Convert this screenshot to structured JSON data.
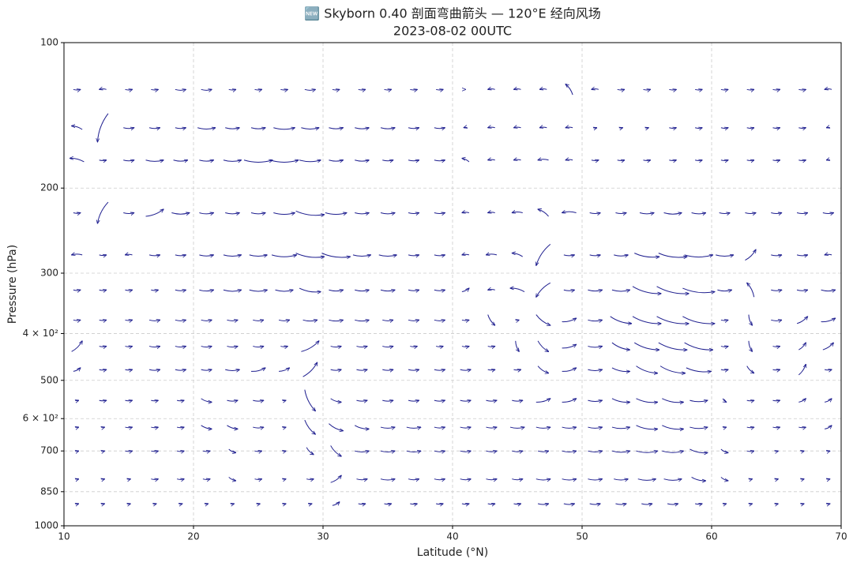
{
  "chart_data": {
    "type": "quiver",
    "title": "🆕 Skyborn 0.40 剖面弯曲箭头 — 120°E 经向风场",
    "subtitle": "2023-08-02 00UTC",
    "x_label": "Latitude (°N)",
    "y_label": "Pressure (hPa)",
    "xlim": [
      10,
      70
    ],
    "xticks": [
      10,
      20,
      30,
      40,
      50,
      60,
      70
    ],
    "ylim": [
      1000,
      100
    ],
    "y_scale": "log",
    "yticks": [
      100,
      200,
      300,
      {
        "value": 400,
        "label": "4 × 10²"
      },
      500,
      {
        "value": 600,
        "label": "6 × 10²"
      },
      700,
      850,
      1000
    ],
    "grid": true,
    "color": "#1f1f8f",
    "x": [
      11,
      13,
      15,
      17,
      19,
      21,
      23,
      25,
      27,
      29,
      31,
      33,
      35,
      37,
      39,
      41,
      43,
      45,
      47,
      49,
      51,
      53,
      55,
      57,
      59,
      61,
      63,
      65,
      67,
      69
    ],
    "levels": [
      125,
      150,
      175,
      225,
      275,
      325,
      375,
      425,
      475,
      550,
      625,
      700,
      800,
      900
    ],
    "u": [
      [
        2,
        -2,
        2,
        2,
        3,
        3,
        2,
        2,
        2,
        3,
        2,
        2,
        2,
        2,
        2,
        0,
        -2,
        -2,
        -2,
        -2,
        -2,
        2,
        2,
        2,
        2,
        2,
        2,
        2,
        2,
        -2
      ],
      [
        -3,
        -3,
        3,
        3,
        3,
        5,
        4,
        4,
        6,
        5,
        4,
        4,
        4,
        3,
        3,
        -1,
        -2,
        -2,
        -2,
        -2,
        1,
        1,
        1,
        2,
        2,
        2,
        2,
        2,
        2,
        -1
      ],
      [
        -4,
        2,
        3,
        5,
        4,
        4,
        5,
        8,
        8,
        6,
        4,
        4,
        3,
        3,
        3,
        -2,
        -2,
        -2,
        -3,
        -2,
        2,
        2,
        2,
        2,
        2,
        2,
        2,
        2,
        2,
        -1
      ],
      [
        2,
        -3,
        3,
        5,
        5,
        4,
        4,
        4,
        6,
        8,
        6,
        4,
        4,
        3,
        3,
        -2,
        -2,
        -3,
        -3,
        -4,
        3,
        3,
        4,
        5,
        4,
        3,
        3,
        3,
        3,
        3
      ],
      [
        -3,
        2,
        -2,
        3,
        3,
        4,
        5,
        5,
        7,
        8,
        8,
        5,
        5,
        3,
        3,
        -2,
        -3,
        -3,
        -4,
        3,
        3,
        4,
        7,
        8,
        8,
        5,
        3,
        3,
        3,
        -2
      ],
      [
        2,
        2,
        2,
        2,
        3,
        4,
        5,
        5,
        5,
        6,
        4,
        4,
        4,
        3,
        3,
        2,
        -2,
        -4,
        -4,
        3,
        4,
        5,
        8,
        9,
        9,
        4,
        -2,
        3,
        3,
        4
      ],
      [
        2,
        2,
        2,
        3,
        3,
        3,
        3,
        3,
        3,
        4,
        4,
        4,
        3,
        3,
        3,
        2,
        2,
        1,
        4,
        4,
        4,
        6,
        8,
        9,
        9,
        2,
        1,
        3,
        3,
        4
      ],
      [
        3,
        2,
        2,
        3,
        3,
        3,
        3,
        3,
        2,
        5,
        3,
        3,
        3,
        2,
        2,
        2,
        2,
        1,
        3,
        4,
        4,
        5,
        7,
        8,
        8,
        2,
        1,
        2,
        2,
        3
      ],
      [
        2,
        2,
        2,
        3,
        3,
        3,
        4,
        4,
        3,
        4,
        3,
        3,
        3,
        3,
        3,
        3,
        2,
        2,
        3,
        4,
        4,
        5,
        6,
        7,
        7,
        2,
        2,
        2,
        2,
        2
      ],
      [
        1,
        2,
        2,
        2,
        2,
        3,
        3,
        3,
        1,
        3,
        3,
        3,
        3,
        3,
        3,
        3,
        3,
        3,
        4,
        4,
        4,
        5,
        6,
        6,
        5,
        1,
        2,
        2,
        2,
        2
      ],
      [
        1,
        1,
        2,
        2,
        2,
        3,
        3,
        3,
        1,
        3,
        4,
        4,
        4,
        4,
        3,
        3,
        3,
        4,
        4,
        4,
        4,
        5,
        6,
        6,
        5,
        1,
        2,
        2,
        2,
        2
      ],
      [
        1,
        1,
        2,
        2,
        2,
        2,
        2,
        2,
        1,
        2,
        3,
        4,
        4,
        4,
        3,
        3,
        3,
        3,
        3,
        4,
        4,
        5,
        6,
        6,
        5,
        2,
        2,
        1,
        1,
        1
      ],
      [
        1,
        1,
        1,
        2,
        2,
        2,
        2,
        2,
        1,
        2,
        3,
        3,
        4,
        3,
        3,
        3,
        3,
        3,
        4,
        4,
        4,
        4,
        5,
        5,
        4,
        2,
        1,
        1,
        1,
        1
      ],
      [
        1,
        1,
        1,
        1,
        1,
        1,
        1,
        1,
        1,
        1,
        2,
        2,
        2,
        2,
        2,
        2,
        2,
        2,
        3,
        3,
        3,
        3,
        3,
        3,
        2,
        1,
        1,
        1,
        1,
        1
      ]
    ],
    "v": [
      [
        0,
        0,
        0,
        0,
        0,
        0,
        0,
        0,
        0,
        0,
        0,
        0,
        0,
        0,
        0,
        0,
        0,
        0,
        0,
        3,
        0,
        0,
        0,
        0,
        0,
        0,
        0,
        0,
        0,
        0
      ],
      [
        1,
        -8,
        0,
        0,
        0,
        0,
        0,
        0,
        0,
        0,
        0,
        0,
        0,
        0,
        0,
        0,
        0,
        0,
        0,
        0,
        0,
        0,
        0,
        0,
        0,
        0,
        0,
        0,
        0,
        0
      ],
      [
        1,
        0,
        0,
        0,
        0,
        0,
        0,
        0,
        0,
        0,
        0,
        0,
        0,
        0,
        0,
        1,
        0,
        0,
        0,
        0,
        0,
        0,
        0,
        0,
        0,
        0,
        0,
        0,
        0,
        0
      ],
      [
        0,
        -6,
        0,
        2,
        0,
        0,
        0,
        0,
        0,
        -1,
        0,
        0,
        0,
        0,
        0,
        0,
        0,
        0,
        2,
        0,
        0,
        0,
        0,
        0,
        0,
        0,
        0,
        0,
        0,
        0
      ],
      [
        0,
        0,
        0,
        0,
        0,
        0,
        0,
        0,
        0,
        -1,
        -1,
        0,
        0,
        0,
        0,
        0,
        0,
        1,
        -6,
        0,
        0,
        0,
        -1,
        -1,
        0,
        0,
        3,
        0,
        0,
        0
      ],
      [
        0,
        0,
        0,
        0,
        0,
        0,
        0,
        0,
        0,
        -1,
        0,
        0,
        0,
        0,
        0,
        1,
        0,
        1,
        -4,
        0,
        0,
        0,
        -2,
        -2,
        -1,
        0,
        4,
        0,
        0,
        0
      ],
      [
        0,
        0,
        0,
        0,
        0,
        0,
        0,
        0,
        0,
        0,
        0,
        0,
        0,
        0,
        0,
        0,
        -3,
        0,
        -3,
        1,
        0,
        -2,
        -2,
        -2,
        -2,
        0,
        -3,
        0,
        2,
        1
      ],
      [
        3,
        0,
        0,
        0,
        0,
        0,
        0,
        0,
        0,
        3,
        0,
        0,
        0,
        0,
        0,
        0,
        0,
        -3,
        -3,
        1,
        0,
        -2,
        -2,
        -2,
        -2,
        0,
        -3,
        0,
        2,
        2
      ],
      [
        1,
        0,
        0,
        0,
        0,
        0,
        0,
        1,
        1,
        4,
        0,
        0,
        0,
        0,
        0,
        0,
        0,
        0,
        -2,
        1,
        0,
        -1,
        -2,
        -2,
        -1,
        0,
        -2,
        0,
        3,
        0
      ],
      [
        0,
        0,
        0,
        0,
        0,
        -1,
        0,
        0,
        0,
        -6,
        -1,
        0,
        0,
        0,
        0,
        0,
        0,
        0,
        1,
        1,
        0,
        -1,
        -1,
        -1,
        0,
        -1,
        0,
        0,
        1,
        1
      ],
      [
        0,
        0,
        0,
        0,
        0,
        -1,
        -1,
        0,
        0,
        -4,
        -2,
        -1,
        0,
        0,
        0,
        0,
        0,
        0,
        0,
        0,
        0,
        0,
        -1,
        -1,
        0,
        0,
        0,
        0,
        0,
        1
      ],
      [
        0,
        0,
        0,
        0,
        0,
        0,
        -1,
        0,
        0,
        -2,
        -3,
        0,
        0,
        0,
        0,
        0,
        0,
        0,
        0,
        0,
        0,
        0,
        0,
        0,
        -1,
        -1,
        0,
        0,
        0,
        0
      ],
      [
        0,
        0,
        0,
        0,
        0,
        0,
        -1,
        0,
        0,
        0,
        2,
        0,
        0,
        0,
        0,
        0,
        0,
        0,
        0,
        0,
        0,
        0,
        0,
        0,
        -1,
        -1,
        0,
        0,
        0,
        0
      ],
      [
        0,
        0,
        0,
        0,
        0,
        0,
        0,
        0,
        0,
        0,
        1,
        0,
        0,
        0,
        0,
        0,
        0,
        0,
        0,
        0,
        0,
        0,
        0,
        0,
        0,
        0,
        0,
        0,
        0,
        0
      ]
    ]
  }
}
